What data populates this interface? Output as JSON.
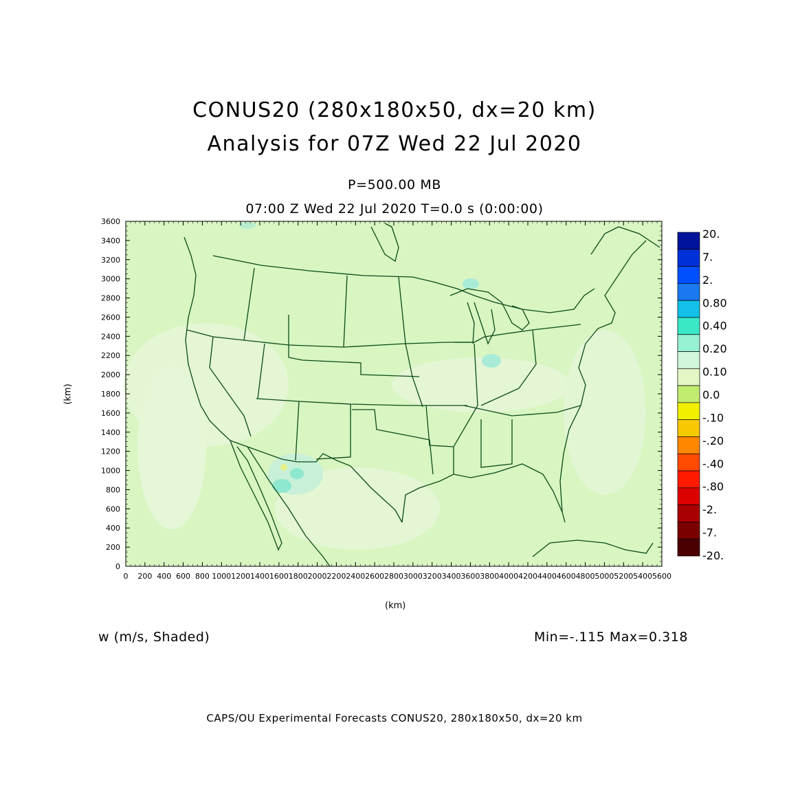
{
  "title_line1": "CONUS20 (280x180x50, dx=20 km)",
  "title_line2": "Analysis for 07Z Wed 22 Jul 2020",
  "level": "P=500.00 MB",
  "valid_time": "07:00 Z Wed 22 Jul 2020    T=0.0 s (0:00:00)",
  "axes": {
    "xlabel": "(km)",
    "ylabel": "(km)",
    "x_ticks": [
      "0",
      "200",
      "400",
      "600",
      "800",
      "1000",
      "1200",
      "1400",
      "1600",
      "1800",
      "2000",
      "2200",
      "2400",
      "2600",
      "2800",
      "3000",
      "3200",
      "3400",
      "3600",
      "3800",
      "4000",
      "4200",
      "4400",
      "4600",
      "4800",
      "5000",
      "5200",
      "5400",
      "5600"
    ],
    "y_ticks": [
      "0",
      "200",
      "400",
      "600",
      "800",
      "1000",
      "1200",
      "1400",
      "1600",
      "1800",
      "2000",
      "2200",
      "2400",
      "2600",
      "2800",
      "3000",
      "3200",
      "3400",
      "3600"
    ],
    "xlim": [
      0,
      5600
    ],
    "ylim": [
      0,
      3600
    ]
  },
  "field_label": "w (m/s, Shaded)",
  "min_max": "Min=-.115  Max=0.318",
  "footer": "CAPS/OU Experimental Forecasts   CONUS20, 280x180x50, dx=20 km",
  "colorbar": {
    "labels": [
      "20.",
      "7.",
      "2.",
      "0.80",
      "0.40",
      "0.20",
      "0.10",
      "0.0",
      "-.10",
      "-.20",
      "-.40",
      "-.80",
      "-2.",
      "-7.",
      "-20."
    ],
    "colors": [
      "#00139a",
      "#0030d8",
      "#0050ff",
      "#1a78f0",
      "#12c0e8",
      "#3ae8c8",
      "#96f0d2",
      "#d0f6dc",
      "#e4f6c4",
      "#c2ec70",
      "#f0f000",
      "#f8c800",
      "#ff8800",
      "#ff4a00",
      "#ff1a00",
      "#dd0000",
      "#a80000",
      "#7a0000",
      "#4a0000"
    ]
  },
  "map": {
    "background": "#d8f5c2",
    "boundary_color": "#0b4a17",
    "water_color": "#ffffff"
  }
}
